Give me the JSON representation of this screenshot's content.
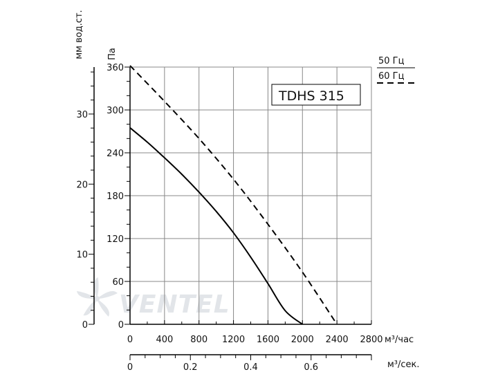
{
  "chart_data": {
    "type": "line",
    "model_label": "TDHS 315",
    "watermark": "VENTEL",
    "series": [
      {
        "name": "50 Гц",
        "style": "solid",
        "x": [
          0,
          200,
          400,
          600,
          800,
          1000,
          1200,
          1400,
          1600,
          1800,
          2000
        ],
        "y": [
          275,
          255,
          233,
          210,
          185,
          158,
          128,
          94,
          57,
          19,
          0
        ]
      },
      {
        "name": "60 Гц",
        "style": "dashed",
        "x": [
          0,
          400,
          800,
          1200,
          1600,
          2000,
          2400
        ],
        "y": [
          362,
          312,
          260,
          203,
          140,
          73,
          0
        ]
      }
    ],
    "axes": {
      "bottom": {
        "unit": "м³/час",
        "range": [
          0,
          2800
        ],
        "ticks": [
          "0",
          "400",
          "800",
          "1200",
          "1600",
          "2000",
          "2400",
          "2800"
        ]
      },
      "bottom2": {
        "unit": "м³/сек.",
        "range": [
          0,
          0.8
        ],
        "ticks": [
          "0",
          "0.2",
          "0.4",
          "0.6"
        ]
      },
      "left": {
        "unit": "Па",
        "range": [
          0,
          360
        ],
        "ticks": [
          "0",
          "60",
          "120",
          "180",
          "240",
          "300",
          "360"
        ]
      },
      "left2": {
        "unit": "мм вод.ст.",
        "range": [
          0,
          36.7
        ],
        "ticks": [
          "0",
          "10",
          "20",
          "30"
        ]
      }
    },
    "legend": {
      "position": "top-right",
      "items": [
        {
          "label": "50 Гц",
          "style": "solid"
        },
        {
          "label": "60 Гц",
          "style": "dashed"
        }
      ]
    },
    "grid": true
  }
}
